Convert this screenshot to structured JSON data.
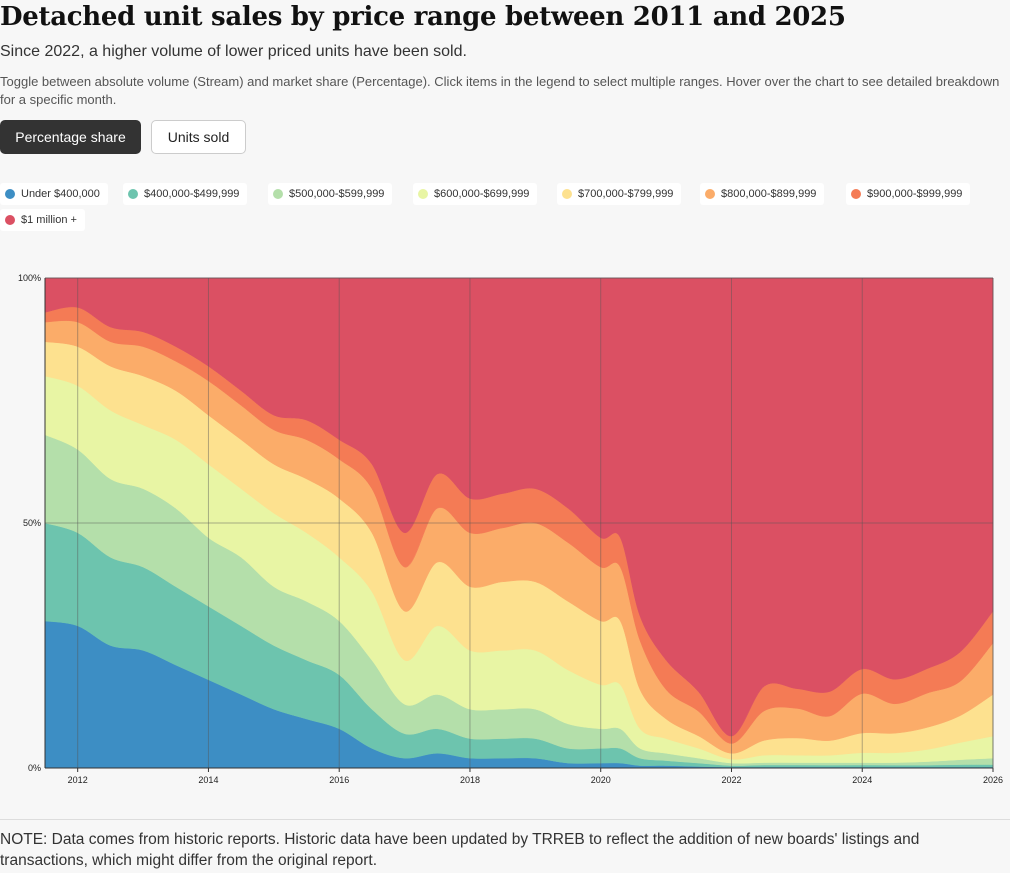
{
  "header": {
    "title": "Detached unit sales by price range between 2011 and 2025",
    "subtitle": "Since 2022, a higher volume of lower priced units have been sold.",
    "description": "Toggle between absolute volume (Stream) and market share (Percentage). Click items in the legend to select multiple ranges. Hover over the chart to see detailed breakdown for a specific month."
  },
  "toggle": {
    "percentage_label": "Percentage share",
    "units_label": "Units sold"
  },
  "note": "NOTE: Data comes from historic reports. Historic data have been updated by TRREB to reflect the addition of new boards' listings and transactions, which might differ from the original report.",
  "chart_data": {
    "type": "area",
    "stacked": "percentage",
    "title": "",
    "xlabel": "",
    "ylabel": "",
    "x_range": [
      2011.5,
      2026
    ],
    "ylim": [
      0,
      100
    ],
    "y_ticks": [
      "0%",
      "50%",
      "100%"
    ],
    "x_ticks": [
      "2012",
      "2014",
      "2016",
      "2018",
      "2020",
      "2022",
      "2024",
      "2026"
    ],
    "grid": true,
    "legend_position": "top-left",
    "x": [
      2011.5,
      2012.0,
      2012.5,
      2013.0,
      2013.5,
      2014.0,
      2014.5,
      2015.0,
      2015.5,
      2016.0,
      2016.5,
      2017.0,
      2017.5,
      2018.0,
      2018.5,
      2019.0,
      2019.5,
      2020.0,
      2020.3,
      2020.6,
      2021.0,
      2021.5,
      2022.0,
      2022.5,
      2023.0,
      2023.5,
      2024.0,
      2024.5,
      2025.0,
      2025.5,
      2026.0
    ],
    "series": [
      {
        "name": "Under $400,000",
        "color": "#3d8ec4",
        "values": [
          30,
          29,
          25,
          24,
          21,
          18,
          15,
          12,
          10,
          8,
          4,
          2,
          3,
          2,
          2,
          2,
          1,
          1,
          1,
          0.5,
          0.5,
          0.3,
          0.2,
          0.2,
          0.2,
          0.2,
          0.2,
          0.2,
          0.2,
          0.2,
          0.2
        ]
      },
      {
        "name": "$400,000-$499,999",
        "color": "#6dc4ae",
        "values": [
          20,
          19,
          18,
          17,
          16,
          15,
          14,
          13,
          12,
          11,
          8,
          5,
          5,
          4,
          4,
          4,
          3,
          3,
          3,
          1.5,
          1,
          0.7,
          0.3,
          0.4,
          0.4,
          0.4,
          0.4,
          0.4,
          0.4,
          0.5,
          0.5
        ]
      },
      {
        "name": "$500,000-$599,999",
        "color": "#b4dfaa",
        "values": [
          18,
          17,
          16,
          16,
          16,
          14,
          14,
          12,
          12,
          11,
          10,
          6,
          7,
          6,
          6,
          6,
          5,
          4,
          4,
          2,
          1.5,
          1,
          0.5,
          0.5,
          0.5,
          0.5,
          0.5,
          0.5,
          0.7,
          1,
          1.3
        ]
      },
      {
        "name": "$600,000-$699,999",
        "color": "#e8f5a4",
        "values": [
          12,
          13,
          14,
          13,
          14,
          15,
          14,
          15,
          14,
          13,
          14,
          9,
          14,
          12,
          12,
          12,
          11,
          9,
          9,
          4,
          3,
          2,
          0.8,
          1.5,
          1.5,
          1.5,
          2,
          2,
          2.5,
          3.5,
          4.5
        ]
      },
      {
        "name": "$700,000-$799,999",
        "color": "#fde18f",
        "values": [
          7,
          8,
          9,
          10,
          10,
          10,
          10,
          10,
          11,
          12,
          12,
          10,
          13,
          13,
          14,
          14,
          14,
          13,
          13,
          8,
          4,
          2.5,
          1.2,
          3,
          3.5,
          3,
          4,
          4,
          4.5,
          5.5,
          8.5
        ]
      },
      {
        "name": "$800,000-$899,999",
        "color": "#fbac69",
        "values": [
          4,
          5,
          5,
          6,
          6,
          7,
          7,
          7,
          8,
          8,
          9,
          9,
          11,
          11,
          11,
          12,
          12,
          11,
          11,
          10,
          6,
          5,
          2,
          6,
          6,
          5,
          8,
          6,
          7,
          7,
          10.5
        ]
      },
      {
        "name": "$900,000-$999,999",
        "color": "#f47b55",
        "values": [
          2,
          3,
          3,
          3,
          3,
          3,
          3,
          3,
          4,
          4,
          5,
          7,
          7,
          7,
          7,
          7,
          7,
          6,
          6,
          5,
          6,
          4,
          1.5,
          5,
          4,
          5,
          5,
          5,
          5,
          6,
          6.5
        ]
      },
      {
        "name": "$1 million +",
        "color": "#db5063",
        "values": [
          7,
          6,
          10,
          11,
          14,
          18,
          23,
          28,
          29,
          33,
          38,
          52,
          40,
          45,
          44,
          43,
          47,
          53,
          53,
          69,
          78,
          84.5,
          93.5,
          82.9,
          83.4,
          84.4,
          79.4,
          81.9,
          79.7,
          76.3,
          68
        ]
      }
    ]
  }
}
